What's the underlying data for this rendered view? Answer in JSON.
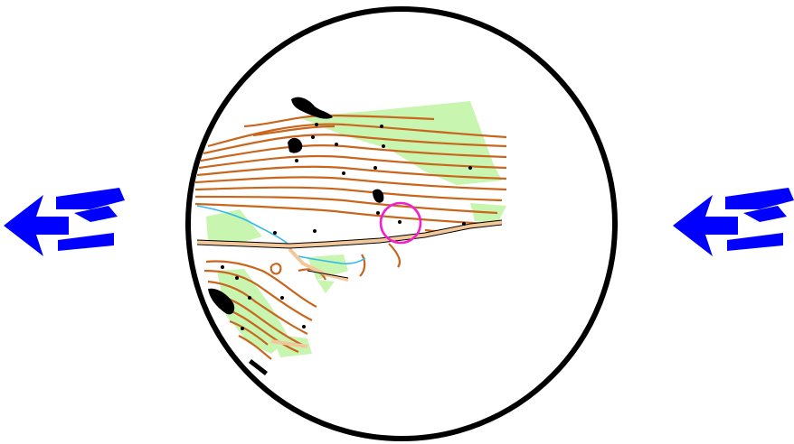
{
  "view": {
    "shape": "circle",
    "border_color": "#000000",
    "background": "#ffffff"
  },
  "navigation": {
    "previous_icon": "blue-double-arrow-left-icon",
    "next_icon": "blue-double-arrow-left-icon",
    "arrow_color": "#0000ff"
  },
  "map": {
    "type": "orienteering-map",
    "colors": {
      "contour": "#c8661e",
      "vegetation": "#c8f5b0",
      "water": "#33bbee",
      "track": "#f2c89a",
      "feature": "#000000",
      "control_circle": "#ee22cc"
    },
    "control_circle_count": 1
  }
}
